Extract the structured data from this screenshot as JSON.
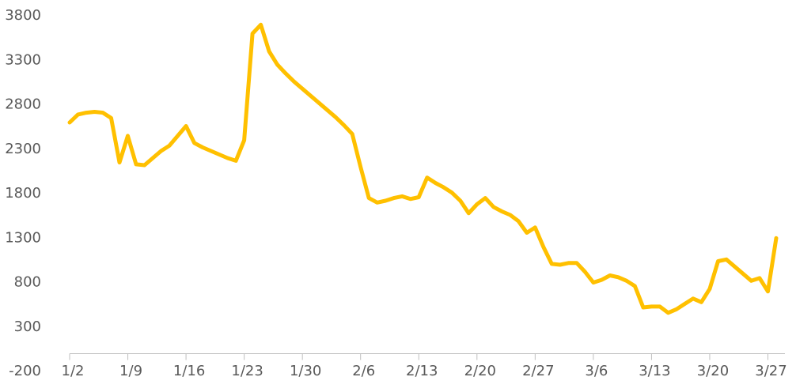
{
  "chart_data": {
    "type": "line",
    "color": "#FFC000",
    "categories": [
      "1/2",
      null,
      null,
      null,
      null,
      null,
      null,
      "1/9",
      null,
      null,
      null,
      null,
      null,
      null,
      "1/16",
      null,
      null,
      null,
      null,
      null,
      null,
      "1/23",
      null,
      null,
      null,
      null,
      null,
      null,
      "1/30",
      null,
      null,
      null,
      null,
      null,
      null,
      "2/6",
      null,
      null,
      null,
      null,
      null,
      null,
      "2/13",
      null,
      null,
      null,
      null,
      null,
      null,
      "2/20",
      null,
      null,
      null,
      null,
      null,
      null,
      "2/27",
      null,
      null,
      null,
      null,
      null,
      null,
      "3/6",
      null,
      null,
      null,
      null,
      null,
      null,
      "3/13",
      null,
      null,
      null,
      null,
      null,
      null,
      "3/20",
      null,
      null,
      null,
      null,
      null,
      null,
      "3/27",
      null
    ],
    "values": [
      2600,
      2690,
      2710,
      2720,
      2710,
      2650,
      2150,
      2450,
      2130,
      2120,
      2200,
      2280,
      2340,
      2450,
      2560,
      2370,
      2320,
      2280,
      2240,
      2200,
      2170,
      2400,
      3600,
      3700,
      3400,
      3250,
      3150,
      3060,
      2980,
      2900,
      2820,
      2740,
      2660,
      2570,
      2470,
      2100,
      1750,
      1700,
      1720,
      1750,
      1770,
      1740,
      1760,
      1980,
      1920,
      1870,
      1810,
      1720,
      1580,
      1680,
      1750,
      1650,
      1600,
      1560,
      1490,
      1360,
      1420,
      1200,
      1010,
      1000,
      1020,
      1020,
      920,
      800,
      830,
      880,
      860,
      820,
      760,
      520,
      530,
      530,
      460,
      500,
      560,
      620,
      580,
      730,
      1040,
      1060,
      980,
      900,
      820,
      850,
      700,
      1300
    ],
    "ylim": [
      -200,
      3800
    ],
    "yticks": [
      -200,
      300,
      800,
      1300,
      1800,
      2300,
      2800,
      3300,
      3800
    ],
    "grid": false
  }
}
